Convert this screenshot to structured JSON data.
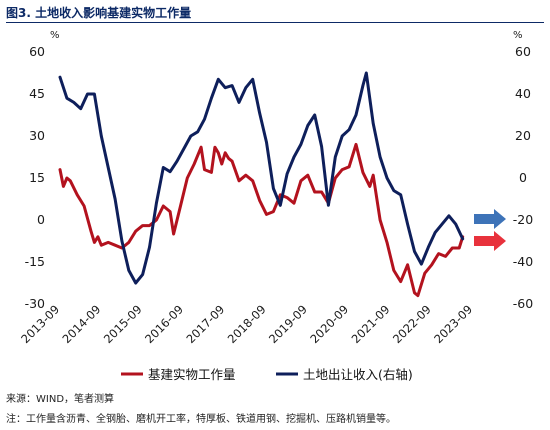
{
  "header": {
    "title": "图3. 土地收入影响基建实物工作量"
  },
  "footer": {
    "source": "来源：WIND，笔者测算",
    "note": "注：工作量含沥青、全钢胎、磨机开工率，特厚板、铁道用钢、挖掘机、压路机销量等。"
  },
  "colors": {
    "series_left": "#b3121e",
    "series_right": "#0e1f5b",
    "arrow_blue": "#3d73b8",
    "arrow_red": "#e8323c"
  },
  "chart_data": {
    "type": "line",
    "left_axis": {
      "unit": "%",
      "ylim": [
        -30,
        60
      ],
      "ticks": [
        -30,
        -15,
        0,
        15,
        30,
        45,
        60
      ]
    },
    "right_axis": {
      "unit": "%",
      "ylim": [
        -60,
        60
      ],
      "ticks": [
        -60,
        -40,
        -20,
        0,
        20,
        40,
        60
      ]
    },
    "x_ticks": [
      "2013-09",
      "2014-09",
      "2015-09",
      "2016-09",
      "2017-09",
      "2018-09",
      "2019-09",
      "2020-09",
      "2021-09",
      "2022-09",
      "2023-09"
    ],
    "grid": false,
    "legend_position": "bottom",
    "series": [
      {
        "name": "基建实物工作量",
        "axis": "left",
        "points": [
          [
            "2013-09",
            18
          ],
          [
            "2013-10",
            12
          ],
          [
            "2013-11",
            15
          ],
          [
            "2013-12",
            14
          ],
          [
            "2014-02",
            9
          ],
          [
            "2014-04",
            5
          ],
          [
            "2014-06",
            -4
          ],
          [
            "2014-07",
            -8
          ],
          [
            "2014-08",
            -6
          ],
          [
            "2014-09",
            -9
          ],
          [
            "2014-11",
            -8
          ],
          [
            "2015-01",
            -9
          ],
          [
            "2015-03",
            -10
          ],
          [
            "2015-05",
            -8
          ],
          [
            "2015-07",
            -4
          ],
          [
            "2015-09",
            -2
          ],
          [
            "2015-11",
            -2
          ],
          [
            "2016-01",
            0
          ],
          [
            "2016-03",
            5
          ],
          [
            "2016-05",
            3
          ],
          [
            "2016-06",
            -5
          ],
          [
            "2016-08",
            5
          ],
          [
            "2016-10",
            15
          ],
          [
            "2016-12",
            20
          ],
          [
            "2017-02",
            26
          ],
          [
            "2017-03",
            18
          ],
          [
            "2017-05",
            17
          ],
          [
            "2017-06",
            26
          ],
          [
            "2017-07",
            24
          ],
          [
            "2017-08",
            20
          ],
          [
            "2017-09",
            24
          ],
          [
            "2017-10",
            22
          ],
          [
            "2017-11",
            21
          ],
          [
            "2018-01",
            14
          ],
          [
            "2018-03",
            16
          ],
          [
            "2018-05",
            14
          ],
          [
            "2018-07",
            7
          ],
          [
            "2018-09",
            2
          ],
          [
            "2018-11",
            3
          ],
          [
            "2019-01",
            9
          ],
          [
            "2019-03",
            8
          ],
          [
            "2019-05",
            6
          ],
          [
            "2019-07",
            14
          ],
          [
            "2019-09",
            16
          ],
          [
            "2019-11",
            10
          ],
          [
            "2020-01",
            10
          ],
          [
            "2020-03",
            6
          ],
          [
            "2020-05",
            15
          ],
          [
            "2020-07",
            18
          ],
          [
            "2020-09",
            19
          ],
          [
            "2020-11",
            27
          ],
          [
            "2021-01",
            17
          ],
          [
            "2021-03",
            12
          ],
          [
            "2021-04",
            16
          ],
          [
            "2021-06",
            0
          ],
          [
            "2021-08",
            -8
          ],
          [
            "2021-10",
            -18
          ],
          [
            "2021-12",
            -22
          ],
          [
            "2022-02",
            -16
          ],
          [
            "2022-04",
            -26
          ],
          [
            "2022-05",
            -27
          ],
          [
            "2022-07",
            -19
          ],
          [
            "2022-09",
            -16
          ],
          [
            "2022-11",
            -12
          ],
          [
            "2023-01",
            -13
          ],
          [
            "2023-03",
            -10
          ],
          [
            "2023-05",
            -10
          ],
          [
            "2023-06",
            -6
          ]
        ]
      },
      {
        "name": "土地出让收入(右轴)",
        "axis": "right",
        "points": [
          [
            "2013-09",
            48
          ],
          [
            "2013-11",
            38
          ],
          [
            "2014-01",
            36
          ],
          [
            "2014-03",
            33
          ],
          [
            "2014-05",
            40
          ],
          [
            "2014-07",
            40
          ],
          [
            "2014-09",
            20
          ],
          [
            "2014-11",
            5
          ],
          [
            "2015-01",
            -10
          ],
          [
            "2015-03",
            -30
          ],
          [
            "2015-05",
            -44
          ],
          [
            "2015-07",
            -50
          ],
          [
            "2015-09",
            -46
          ],
          [
            "2015-11",
            -33
          ],
          [
            "2016-01",
            -12
          ],
          [
            "2016-03",
            5
          ],
          [
            "2016-05",
            3
          ],
          [
            "2016-07",
            8
          ],
          [
            "2016-09",
            14
          ],
          [
            "2016-11",
            20
          ],
          [
            "2017-01",
            22
          ],
          [
            "2017-03",
            28
          ],
          [
            "2017-05",
            38
          ],
          [
            "2017-07",
            47
          ],
          [
            "2017-09",
            43
          ],
          [
            "2017-11",
            44
          ],
          [
            "2018-01",
            36
          ],
          [
            "2018-03",
            43
          ],
          [
            "2018-05",
            47
          ],
          [
            "2018-07",
            31
          ],
          [
            "2018-09",
            17
          ],
          [
            "2018-11",
            -5
          ],
          [
            "2019-01",
            -13
          ],
          [
            "2019-03",
            2
          ],
          [
            "2019-05",
            10
          ],
          [
            "2019-07",
            16
          ],
          [
            "2019-09",
            25
          ],
          [
            "2019-11",
            30
          ],
          [
            "2020-01",
            15
          ],
          [
            "2020-03",
            -13
          ],
          [
            "2020-05",
            10
          ],
          [
            "2020-07",
            20
          ],
          [
            "2020-09",
            23
          ],
          [
            "2020-11",
            30
          ],
          [
            "2021-01",
            44
          ],
          [
            "2021-02",
            50
          ],
          [
            "2021-04",
            26
          ],
          [
            "2021-06",
            10
          ],
          [
            "2021-08",
            0
          ],
          [
            "2021-10",
            -6
          ],
          [
            "2021-12",
            -8
          ],
          [
            "2022-02",
            -22
          ],
          [
            "2022-04",
            -35
          ],
          [
            "2022-06",
            -41
          ],
          [
            "2022-08",
            -33
          ],
          [
            "2022-10",
            -26
          ],
          [
            "2022-12",
            -22
          ],
          [
            "2023-02",
            -18
          ],
          [
            "2023-04",
            -22
          ],
          [
            "2023-06",
            -29
          ]
        ]
      }
    ]
  }
}
